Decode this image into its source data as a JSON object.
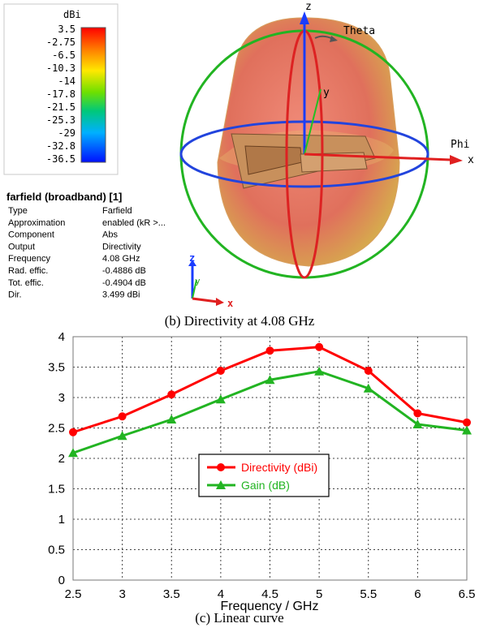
{
  "colorbar": {
    "unit": "dBi",
    "ticks": [
      "3.5",
      "-2.75",
      "-6.5",
      "-10.3",
      "-14",
      "-17.8",
      "-21.5",
      "-25.3",
      "-29",
      "-32.8",
      "-36.5"
    ]
  },
  "info": {
    "title": "farfield (broadband) [1]",
    "rows": [
      {
        "label": "Type",
        "value": "Farfield"
      },
      {
        "label": "Approximation",
        "value": "enabled (kR >..."
      },
      {
        "label": "Component",
        "value": "Abs"
      },
      {
        "label": "Output",
        "value": "Directivity"
      },
      {
        "label": "Frequency",
        "value": "4.08 GHz"
      },
      {
        "label": "Rad. effic.",
        "value": "-0.4886 dB"
      },
      {
        "label": "Tot. effic.",
        "value": "-0.4904 dB"
      },
      {
        "label": "Dir.",
        "value": "3.499 dBi"
      }
    ]
  },
  "axes3d": {
    "z": "z",
    "y": "y",
    "x": "x",
    "theta": "Theta",
    "phi": "Phi"
  },
  "small_axes": {
    "z": "z",
    "y": "y",
    "x": "x"
  },
  "captions": {
    "b": "(b) Directivity at 4.08 GHz",
    "c": "(c) Linear curve"
  },
  "colors": {
    "directivity": "#ff0000",
    "gain": "#22b422",
    "sphere": "#e87a6a"
  },
  "chart_data": {
    "type": "line",
    "x": [
      2.5,
      3,
      3.5,
      4,
      4.5,
      5,
      5.5,
      6,
      6.5
    ],
    "xticks": [
      "2.5",
      "3",
      "3.5",
      "4",
      "4.5",
      "5",
      "5.5",
      "6",
      "6.5"
    ],
    "yticks": [
      "0",
      "0.5",
      "1",
      "1.5",
      "2",
      "2.5",
      "3",
      "3.5",
      "4"
    ],
    "xlim": [
      2.5,
      6.5
    ],
    "ylim": [
      0,
      4
    ],
    "xlabel": "Frequency / GHz",
    "ylabel": "",
    "grid": true,
    "legend_position": "center",
    "series": [
      {
        "name": "Directivity (dBi)",
        "color": "#ff0000",
        "marker": "circle",
        "values": [
          2.43,
          2.69,
          3.05,
          3.44,
          3.77,
          3.83,
          3.44,
          2.74,
          2.59
        ]
      },
      {
        "name": "Gain (dB)",
        "color": "#22b422",
        "marker": "triangle",
        "values": [
          2.09,
          2.37,
          2.64,
          2.97,
          3.29,
          3.43,
          3.15,
          2.56,
          2.46
        ]
      }
    ]
  }
}
